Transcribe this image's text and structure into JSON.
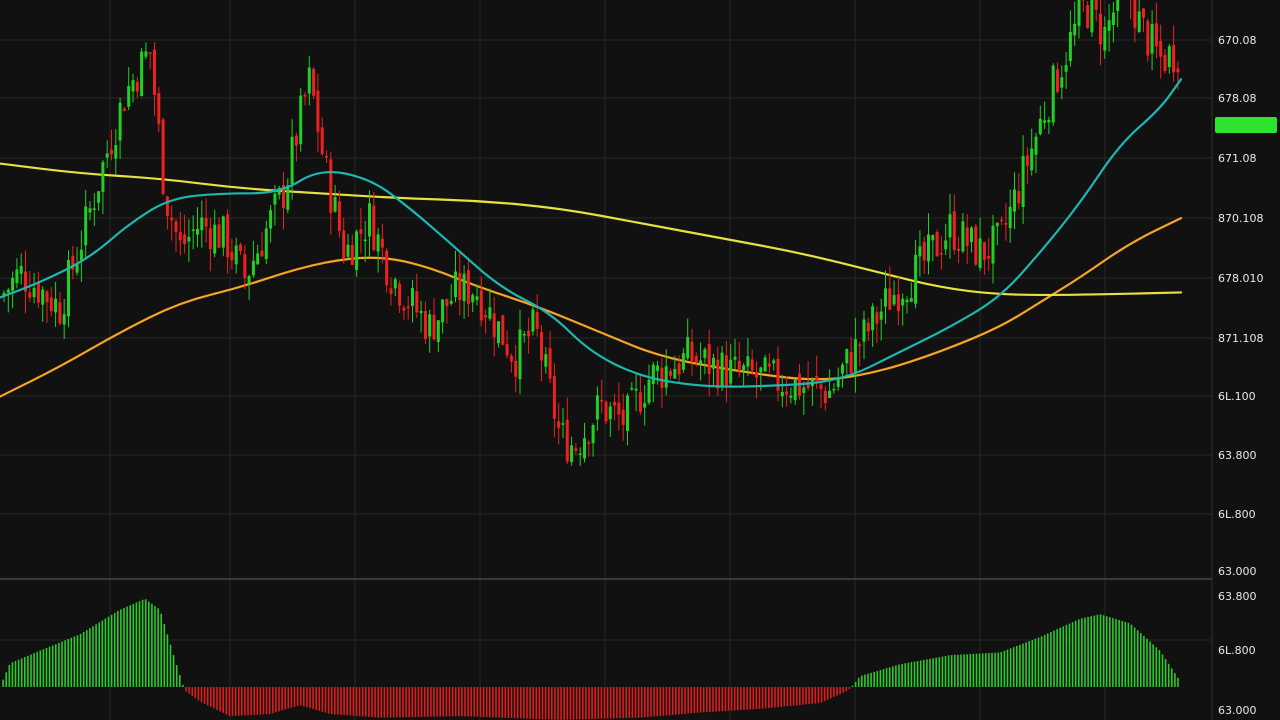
{
  "chart_data": [
    {
      "type": "candlestick",
      "title": "",
      "xlabel": "",
      "ylabel": "",
      "ylim": [
        59.2,
        70.8
      ],
      "grid": true,
      "y_tick_labels": [
        "670.08",
        "678.08",
        "671.08",
        "870.108",
        "678.010",
        "871.108",
        "6L.100",
        "63.800",
        "6L.800",
        "63.000"
      ],
      "current_price_label": "",
      "colors": {
        "up": "#22d022",
        "down": "#ee2020",
        "ma_fast": "#1fb6b0",
        "ma_mid": "#f6a423",
        "ma_slow": "#e8e040",
        "background": "#111111",
        "grid": "#262626"
      },
      "price_path": [
        {
          "t": 0,
          "p": 64.8
        },
        {
          "t": 20,
          "p": 65.3
        },
        {
          "t": 38,
          "p": 65.0
        },
        {
          "t": 60,
          "p": 64.6
        },
        {
          "t": 85,
          "p": 66.2
        },
        {
          "t": 105,
          "p": 67.6
        },
        {
          "t": 125,
          "p": 68.9
        },
        {
          "t": 150,
          "p": 69.8
        },
        {
          "t": 165,
          "p": 66.9
        },
        {
          "t": 180,
          "p": 65.8
        },
        {
          "t": 200,
          "p": 66.3
        },
        {
          "t": 225,
          "p": 66.0
        },
        {
          "t": 245,
          "p": 65.2
        },
        {
          "t": 265,
          "p": 66.1
        },
        {
          "t": 285,
          "p": 67.0
        },
        {
          "t": 300,
          "p": 68.4
        },
        {
          "t": 310,
          "p": 69.2
        },
        {
          "t": 325,
          "p": 67.4
        },
        {
          "t": 345,
          "p": 65.7
        },
        {
          "t": 370,
          "p": 66.4
        },
        {
          "t": 390,
          "p": 65.3
        },
        {
          "t": 410,
          "p": 64.7
        },
        {
          "t": 430,
          "p": 64.2
        },
        {
          "t": 455,
          "p": 64.9
        },
        {
          "t": 475,
          "p": 65.0
        },
        {
          "t": 495,
          "p": 64.3
        },
        {
          "t": 515,
          "p": 63.6
        },
        {
          "t": 535,
          "p": 64.2
        },
        {
          "t": 560,
          "p": 62.0
        },
        {
          "t": 575,
          "p": 61.8
        },
        {
          "t": 600,
          "p": 62.6
        },
        {
          "t": 625,
          "p": 62.3
        },
        {
          "t": 650,
          "p": 63.2
        },
        {
          "t": 690,
          "p": 63.6
        },
        {
          "t": 730,
          "p": 63.3
        },
        {
          "t": 780,
          "p": 63.1
        },
        {
          "t": 830,
          "p": 62.9
        },
        {
          "t": 860,
          "p": 63.9
        },
        {
          "t": 890,
          "p": 64.8
        },
        {
          "t": 920,
          "p": 65.4
        },
        {
          "t": 950,
          "p": 66.2
        },
        {
          "t": 980,
          "p": 65.7
        },
        {
          "t": 1000,
          "p": 65.9
        },
        {
          "t": 1025,
          "p": 67.4
        },
        {
          "t": 1045,
          "p": 68.6
        },
        {
          "t": 1065,
          "p": 69.7
        },
        {
          "t": 1085,
          "p": 70.7
        },
        {
          "t": 1105,
          "p": 70.1
        },
        {
          "t": 1125,
          "p": 71.2
        },
        {
          "t": 1140,
          "p": 70.3
        },
        {
          "t": 1160,
          "p": 69.6
        },
        {
          "t": 1181,
          "p": 69.8
        }
      ],
      "moving_averages": [
        {
          "color": "#1fb6b0",
          "points": [
            [
              0,
              64.8
            ],
            [
              40,
              65.1
            ],
            [
              90,
              65.6
            ],
            [
              130,
              66.3
            ],
            [
              170,
              66.8
            ],
            [
              220,
              66.9
            ],
            [
              280,
              66.9
            ],
            [
              320,
              67.4
            ],
            [
              370,
              67.2
            ],
            [
              410,
              66.6
            ],
            [
              450,
              65.9
            ],
            [
              500,
              65.0
            ],
            [
              550,
              64.5
            ],
            [
              590,
              63.7
            ],
            [
              640,
              63.2
            ],
            [
              700,
              63.0
            ],
            [
              760,
              63.0
            ],
            [
              840,
              63.1
            ],
            [
              900,
              63.7
            ],
            [
              950,
              64.2
            ],
            [
              1000,
              64.8
            ],
            [
              1040,
              65.7
            ],
            [
              1080,
              66.7
            ],
            [
              1120,
              67.9
            ],
            [
              1160,
              68.6
            ],
            [
              1181,
              69.2
            ]
          ]
        },
        {
          "color": "#f6a423",
          "points": [
            [
              0,
              62.8
            ],
            [
              60,
              63.4
            ],
            [
              120,
              64.1
            ],
            [
              180,
              64.7
            ],
            [
              240,
              65.0
            ],
            [
              300,
              65.4
            ],
            [
              350,
              65.6
            ],
            [
              390,
              65.6
            ],
            [
              430,
              65.4
            ],
            [
              480,
              65.0
            ],
            [
              540,
              64.6
            ],
            [
              600,
              64.1
            ],
            [
              660,
              63.6
            ],
            [
              740,
              63.3
            ],
            [
              820,
              63.1
            ],
            [
              880,
              63.3
            ],
            [
              940,
              63.7
            ],
            [
              1000,
              64.2
            ],
            [
              1040,
              64.7
            ],
            [
              1080,
              65.2
            ],
            [
              1130,
              65.9
            ],
            [
              1181,
              66.4
            ]
          ]
        },
        {
          "color": "#e8e040",
          "points": [
            [
              0,
              67.5
            ],
            [
              80,
              67.3
            ],
            [
              160,
              67.2
            ],
            [
              240,
              67.0
            ],
            [
              320,
              66.9
            ],
            [
              400,
              66.8
            ],
            [
              480,
              66.75
            ],
            [
              560,
              66.6
            ],
            [
              640,
              66.3
            ],
            [
              720,
              66.0
            ],
            [
              800,
              65.7
            ],
            [
              880,
              65.3
            ],
            [
              940,
              65.0
            ],
            [
              1000,
              64.85
            ],
            [
              1080,
              64.85
            ],
            [
              1181,
              64.9
            ]
          ]
        }
      ]
    },
    {
      "type": "histogram",
      "title": "",
      "xlabel": "",
      "ylabel": "",
      "ylim": [
        -1.0,
        1.0
      ],
      "y_tick_labels": [
        "63.800",
        "6L.800",
        "63.000"
      ],
      "colors": {
        "positive": "#2ccb2c",
        "negative": "#e11c1c"
      },
      "profile": [
        {
          "t": 0,
          "v": 0.0
        },
        {
          "t": 10,
          "v": 0.26
        },
        {
          "t": 40,
          "v": 0.4
        },
        {
          "t": 80,
          "v": 0.58
        },
        {
          "t": 120,
          "v": 0.85
        },
        {
          "t": 145,
          "v": 0.97
        },
        {
          "t": 160,
          "v": 0.85
        },
        {
          "t": 175,
          "v": 0.3
        },
        {
          "t": 185,
          "v": -0.05
        },
        {
          "t": 200,
          "v": -0.2
        },
        {
          "t": 230,
          "v": -0.4
        },
        {
          "t": 270,
          "v": -0.37
        },
        {
          "t": 300,
          "v": -0.25
        },
        {
          "t": 330,
          "v": -0.37
        },
        {
          "t": 380,
          "v": -0.42
        },
        {
          "t": 460,
          "v": -0.4
        },
        {
          "t": 560,
          "v": -0.45
        },
        {
          "t": 640,
          "v": -0.42
        },
        {
          "t": 700,
          "v": -0.35
        },
        {
          "t": 760,
          "v": -0.3
        },
        {
          "t": 820,
          "v": -0.22
        },
        {
          "t": 848,
          "v": -0.05
        },
        {
          "t": 860,
          "v": 0.12
        },
        {
          "t": 900,
          "v": 0.25
        },
        {
          "t": 950,
          "v": 0.35
        },
        {
          "t": 1000,
          "v": 0.38
        },
        {
          "t": 1040,
          "v": 0.55
        },
        {
          "t": 1080,
          "v": 0.75
        },
        {
          "t": 1100,
          "v": 0.8
        },
        {
          "t": 1130,
          "v": 0.7
        },
        {
          "t": 1160,
          "v": 0.4
        },
        {
          "t": 1181,
          "v": 0.05
        }
      ]
    }
  ]
}
